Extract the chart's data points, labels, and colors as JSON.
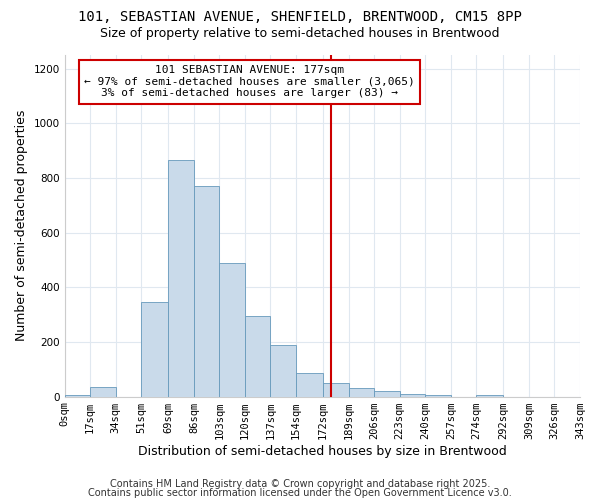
{
  "title": "101, SEBASTIAN AVENUE, SHENFIELD, BRENTWOOD, CM15 8PP",
  "subtitle": "Size of property relative to semi-detached houses in Brentwood",
  "xlabel": "Distribution of semi-detached houses by size in Brentwood",
  "ylabel": "Number of semi-detached properties",
  "bar_edges": [
    0,
    17,
    34,
    51,
    69,
    86,
    103,
    120,
    137,
    154,
    172,
    189,
    206,
    223,
    240,
    257,
    274,
    292,
    309,
    326,
    343
  ],
  "bar_heights": [
    5,
    35,
    0,
    345,
    865,
    770,
    490,
    295,
    190,
    85,
    50,
    30,
    20,
    10,
    5,
    0,
    5,
    0,
    0,
    0
  ],
  "bar_color": "#c9daea",
  "bar_edge_color": "#6699bb",
  "vline_x": 177,
  "vline_color": "#cc0000",
  "annotation_line1": "101 SEBASTIAN AVENUE: 177sqm",
  "annotation_line2": "← 97% of semi-detached houses are smaller (3,065)",
  "annotation_line3": "3% of semi-detached houses are larger (83) →",
  "annotation_box_color": "#cc0000",
  "annotation_bg": "#ffffff",
  "ylim": [
    0,
    1250
  ],
  "yticks": [
    0,
    200,
    400,
    600,
    800,
    1000,
    1200
  ],
  "xtick_labels": [
    "0sqm",
    "17sqm",
    "34sqm",
    "51sqm",
    "69sqm",
    "86sqm",
    "103sqm",
    "120sqm",
    "137sqm",
    "154sqm",
    "172sqm",
    "189sqm",
    "206sqm",
    "223sqm",
    "240sqm",
    "257sqm",
    "274sqm",
    "292sqm",
    "309sqm",
    "326sqm",
    "343sqm"
  ],
  "footer1": "Contains HM Land Registry data © Crown copyright and database right 2025.",
  "footer2": "Contains public sector information licensed under the Open Government Licence v3.0.",
  "bg_color": "#ffffff",
  "plot_bg_color": "#ffffff",
  "grid_color": "#e0e8f0",
  "title_fontsize": 10,
  "subtitle_fontsize": 9,
  "axis_label_fontsize": 9,
  "tick_fontsize": 7.5,
  "footer_fontsize": 7,
  "annotation_fontsize": 8
}
